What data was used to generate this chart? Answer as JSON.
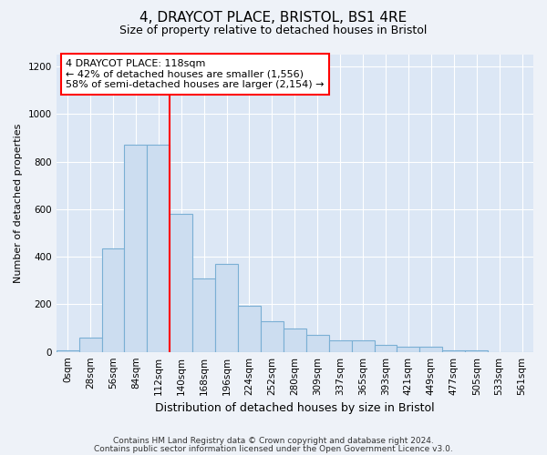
{
  "title": "4, DRAYCOT PLACE, BRISTOL, BS1 4RE",
  "subtitle": "Size of property relative to detached houses in Bristol",
  "xlabel": "Distribution of detached houses by size in Bristol",
  "ylabel": "Number of detached properties",
  "bar_color": "#ccddf0",
  "bar_edge_color": "#7aafd4",
  "bins": [
    "0sqm",
    "28sqm",
    "56sqm",
    "84sqm",
    "112sqm",
    "140sqm",
    "168sqm",
    "196sqm",
    "224sqm",
    "252sqm",
    "280sqm",
    "309sqm",
    "337sqm",
    "365sqm",
    "393sqm",
    "421sqm",
    "449sqm",
    "477sqm",
    "505sqm",
    "533sqm",
    "561sqm"
  ],
  "values": [
    5,
    60,
    435,
    870,
    870,
    580,
    310,
    370,
    195,
    130,
    100,
    70,
    50,
    50,
    30,
    20,
    20,
    5,
    5,
    0,
    0
  ],
  "vline_color": "red",
  "annotation_text": "4 DRAYCOT PLACE: 118sqm\n← 42% of detached houses are smaller (1,556)\n58% of semi-detached houses are larger (2,154) →",
  "annotation_box_facecolor": "white",
  "annotation_box_edgecolor": "red",
  "ylim": [
    0,
    1250
  ],
  "yticks": [
    0,
    200,
    400,
    600,
    800,
    1000,
    1200
  ],
  "footer_line1": "Contains HM Land Registry data © Crown copyright and database right 2024.",
  "footer_line2": "Contains public sector information licensed under the Open Government Licence v3.0.",
  "bg_color": "#eef2f8",
  "plot_bg_color": "#dce7f5",
  "title_fontsize": 11,
  "subtitle_fontsize": 9,
  "xlabel_fontsize": 9,
  "ylabel_fontsize": 8,
  "tick_fontsize": 7.5,
  "footer_fontsize": 6.5
}
